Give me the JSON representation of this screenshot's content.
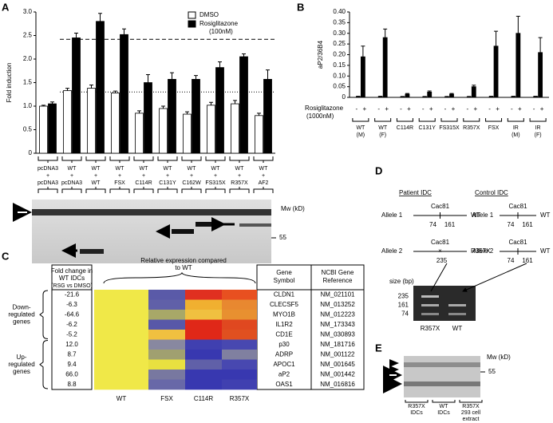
{
  "panel_labels": [
    "A",
    "B",
    "C",
    "D",
    "E"
  ],
  "chart_data": [
    {
      "type": "bar",
      "y_label": "Fold induction",
      "categories": [
        [
          "pcDNA3",
          "+",
          "pcDNA3"
        ],
        [
          "WT",
          "+",
          "pcDNA3"
        ],
        [
          "WT",
          "+",
          "WT"
        ],
        [
          "WT",
          "+",
          "FSX"
        ],
        [
          "WT",
          "+",
          "C114R"
        ],
        [
          "WT",
          "+",
          "C131Y"
        ],
        [
          "WT",
          "+",
          "C162W"
        ],
        [
          "WT",
          "+",
          "FS315X"
        ],
        [
          "WT",
          "+",
          "R357X"
        ],
        [
          "WT",
          "+",
          "AF2"
        ]
      ],
      "series": [
        {
          "name": "DMSO",
          "color": "#ffffff",
          "values": [
            1.0,
            1.33,
            1.38,
            1.28,
            0.85,
            0.95,
            0.83,
            1.02,
            1.05,
            0.8
          ],
          "errors": [
            0.02,
            0.05,
            0.07,
            0.04,
            0.05,
            0.05,
            0.05,
            0.06,
            0.07,
            0.05
          ]
        },
        {
          "name": "Rosiglitazone",
          "color": "#000000",
          "values": [
            1.05,
            2.45,
            2.8,
            2.52,
            1.5,
            1.57,
            1.57,
            1.82,
            2.05,
            1.57
          ],
          "errors": [
            0.04,
            0.1,
            0.17,
            0.12,
            0.17,
            0.14,
            0.08,
            0.12,
            0.06,
            0.2
          ]
        }
      ],
      "legend_note": "(100nM)",
      "legend": "top-right",
      "ylim": [
        0,
        3
      ],
      "yticks": [
        0,
        0.5,
        {
          "value": 1,
          "label": "1.0"
        },
        1.5,
        {
          "value": 2,
          "label": "2.0"
        },
        2.5,
        {
          "value": 3,
          "label": "3.0"
        }
      ],
      "reference_lines": [
        {
          "value": 2.42,
          "style": "dashed"
        },
        {
          "value": 1.3,
          "style": "dotted"
        }
      ],
      "blot": {
        "mw_label": "Mw (kD)",
        "marker": "55"
      }
    },
    {
      "type": "bar",
      "y_label": "aP2/36B4",
      "categories": [
        [
          "WT",
          "(M)"
        ],
        [
          "WT",
          "(F)"
        ],
        [
          "C114R"
        ],
        [
          "C131Y"
        ],
        [
          "FS315X"
        ],
        [
          "R357X"
        ],
        [
          "FSX"
        ],
        [
          "IR",
          "(M)"
        ],
        [
          "IR",
          "(F)"
        ]
      ],
      "series": [
        {
          "name": "-",
          "color": "#000000",
          "values": [
            0.004,
            0.004,
            0.003,
            0.003,
            0.003,
            0.003,
            0.004,
            0.004,
            0.004
          ],
          "errors": [
            0.001,
            0.001,
            0.001,
            0.001,
            0.001,
            0.001,
            0.001,
            0.001,
            0.001
          ]
        },
        {
          "name": "+",
          "color": "#000000",
          "values": [
            0.19,
            0.28,
            0.015,
            0.025,
            0.015,
            0.05,
            0.24,
            0.3,
            0.21
          ],
          "errors": [
            0.05,
            0.04,
            0.003,
            0.005,
            0.003,
            0.007,
            0.07,
            0.08,
            0.07
          ]
        }
      ],
      "row_label": [
        "Rosiglitazone",
        "(1000nM)"
      ],
      "ylim": [
        0,
        0.4
      ],
      "yticks": [
        0,
        0.05,
        {
          "value": 0.1,
          "label": "0.10"
        },
        0.15,
        {
          "value": 0.2,
          "label": "0.20"
        },
        0.25,
        {
          "value": 0.3,
          "label": "0.30"
        },
        0.35,
        {
          "value": 0.4,
          "label": "0.40"
        }
      ]
    }
  ],
  "panel_c": {
    "fold_header": [
      "Fold change in",
      "WT IDCs",
      "(RSG vs DMSO)"
    ],
    "relative_header": [
      "Relative expression compared",
      "to WT"
    ],
    "gene_header": [
      "Gene",
      "Symbol"
    ],
    "ref_header": [
      "NCBI Gene",
      "Reference"
    ],
    "groups": [
      [
        "Down-",
        "regulated",
        "genes"
      ],
      [
        "Up-",
        "regulated",
        "genes"
      ]
    ],
    "columns": [
      "WT",
      "FSX",
      "C114R",
      "R357X"
    ],
    "rows": [
      {
        "fold": "-21.6",
        "gene": "CLDN1",
        "ref": "NM_021101",
        "color": "#3a3aa0",
        "heat": [
          "#f0e848",
          "#5a5aa8",
          "#e03020",
          "#e85020"
        ]
      },
      {
        "fold": "-6.3",
        "gene": "CLECSF5",
        "ref": "NM_013252",
        "color": "#3a3aa0",
        "heat": [
          "#f0e848",
          "#6060a8",
          "#f0b030",
          "#e88830"
        ]
      },
      {
        "fold": "-64.6",
        "gene": "MYO1B",
        "ref": "NM_012223",
        "color": "#3a3aa0",
        "heat": [
          "#f0e848",
          "#a8a868",
          "#f0c040",
          "#e89030"
        ]
      },
      {
        "fold": "-6.2",
        "gene": "IL1R2",
        "ref": "NM_173343",
        "color": "#3a3aa0",
        "heat": [
          "#f0e848",
          "#5858a8",
          "#e02818",
          "#e04820"
        ]
      },
      {
        "fold": "-5.2",
        "gene": "CD1E",
        "ref": "NM_030893",
        "color": "#3a3aa0",
        "heat": [
          "#f0e848",
          "#f0c040",
          "#e02818",
          "#e05020"
        ]
      },
      {
        "fold": "12.0",
        "gene": "p30",
        "ref": "NM_181716",
        "color": "#c02020",
        "heat": [
          "#f0e848",
          "#8888a0",
          "#4040b0",
          "#4848b0"
        ]
      },
      {
        "fold": "8.7",
        "gene": "ADRP",
        "ref": "NM_001122",
        "color": "#c02020",
        "heat": [
          "#f0e848",
          "#a0a070",
          "#3838b0",
          "#8080a0"
        ]
      },
      {
        "fold": "9.4",
        "gene": "APOC1",
        "ref": "NM_001645",
        "color": "#c02020",
        "heat": [
          "#f0e848",
          "#e8e040",
          "#6060a8",
          "#4848b0"
        ]
      },
      {
        "fold": "66.0",
        "gene": "aP2",
        "ref": "NM_001442",
        "color": "#c02020",
        "heat": [
          "#f0e848",
          "#7878a0",
          "#3838b0",
          "#3838b0"
        ]
      },
      {
        "fold": "8.8",
        "gene": "OAS1",
        "ref": "NM_016816",
        "color": "#c02020",
        "heat": [
          "#f0e848",
          "#6868a8",
          "#3838b0",
          "#4040b0"
        ]
      }
    ]
  },
  "panel_d": {
    "patient": "Patient IDC",
    "control": "Control IDC",
    "allele1": "Allele 1",
    "allele2": "Allele 2",
    "exon": "Cac81",
    "p74": "74",
    "p161": "161",
    "wt": "WT",
    "p235": "235",
    "mut": "R357X",
    "gel": {
      "size_label": "size (bp)",
      "sizes": [
        "235",
        "161",
        "74"
      ],
      "lanes": [
        "R357X",
        "WT"
      ]
    }
  },
  "panel_e": {
    "mw_label": "Mw (kD)",
    "marker": "55",
    "lanes": [
      [
        "R357X",
        "IDCs"
      ],
      [
        "WT",
        "IDCs"
      ],
      [
        "R357X",
        "293 cell",
        "extract"
      ]
    ]
  }
}
